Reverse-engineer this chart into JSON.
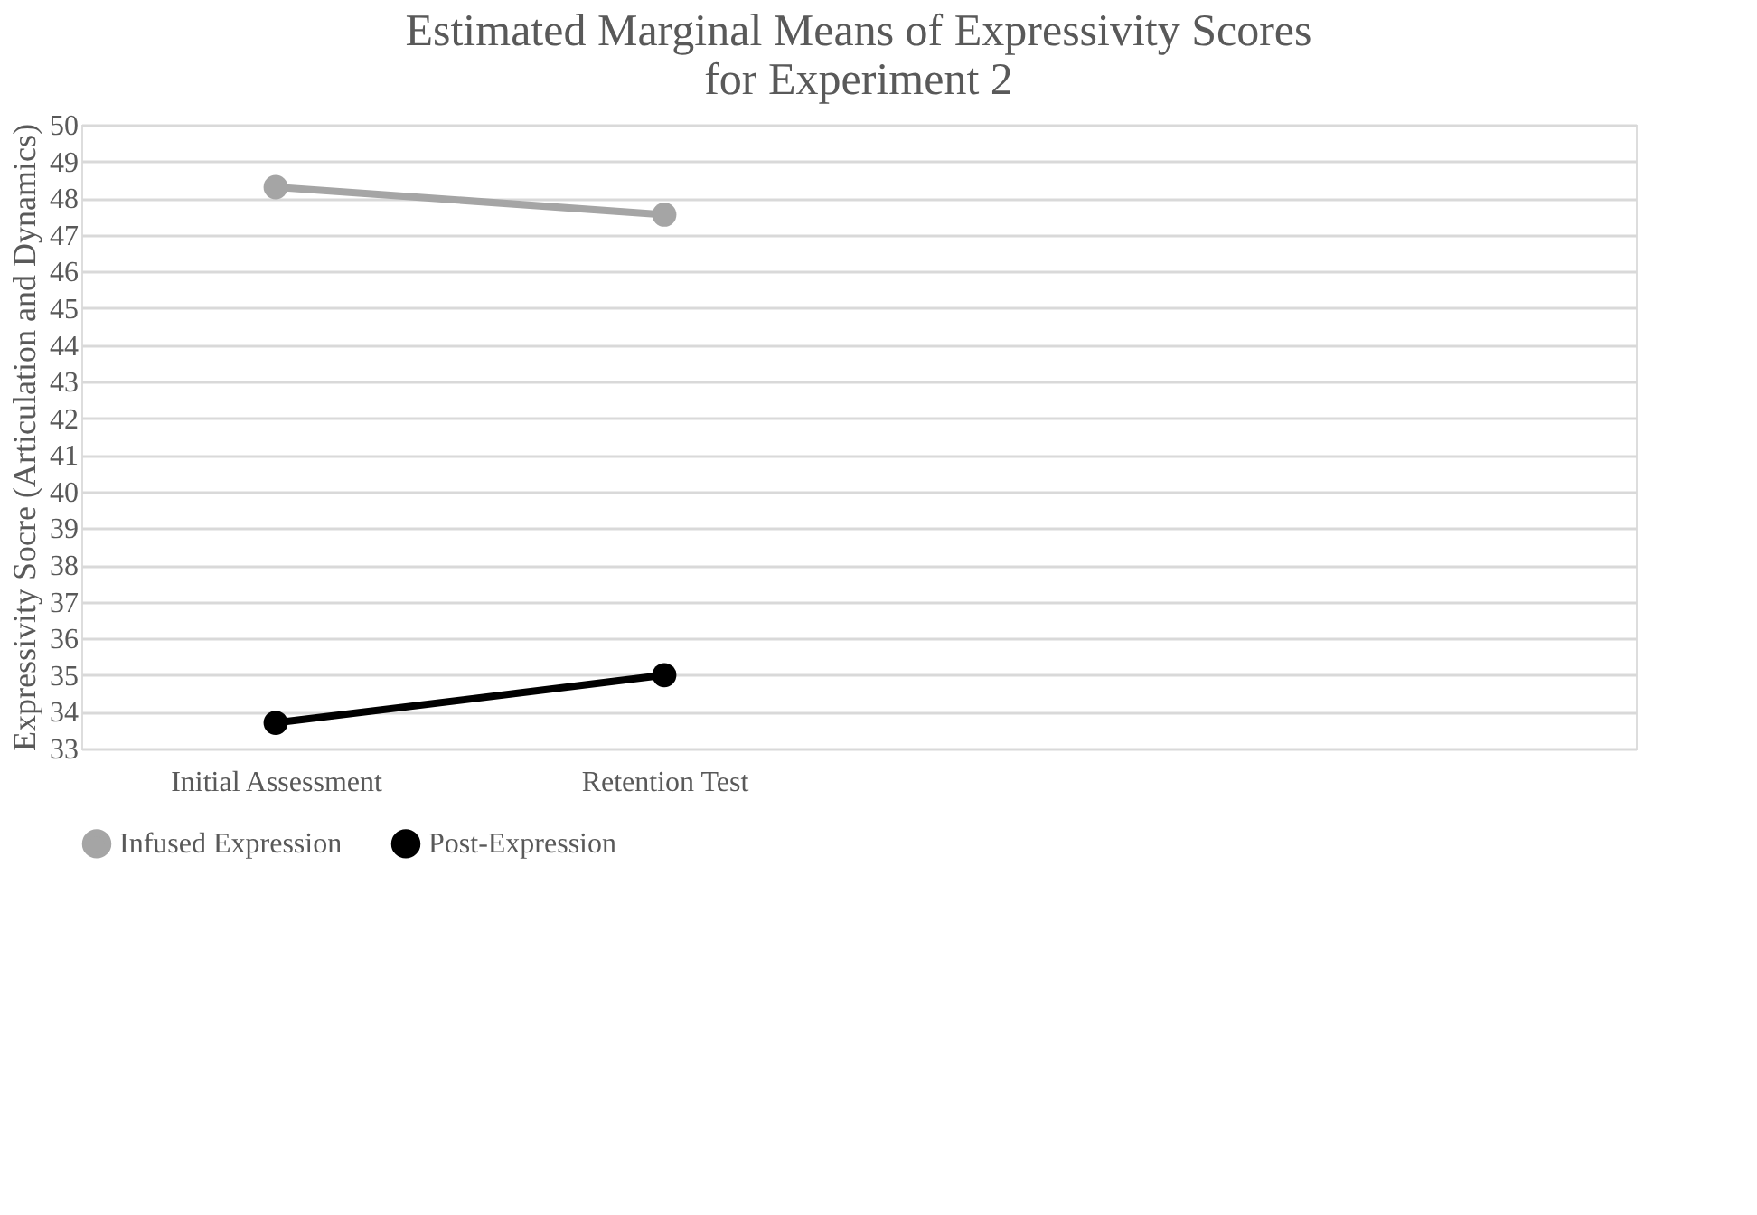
{
  "chart_data": {
    "type": "line",
    "title": "Estimated Marginal Means of Expressivity Scores\nfor Experiment 2",
    "ylabel": "Expressivity Socre (Articulation and Dynamics)",
    "categories": [
      "Initial Assessment",
      "Retention Test",
      null,
      null
    ],
    "series": [
      {
        "name": "Infused Expression",
        "color": "#a5a5a5",
        "values": [
          48.3,
          47.55,
          null,
          null
        ]
      },
      {
        "name": "Post-Expression",
        "color": "#000000",
        "values": [
          33.7,
          35.0,
          null,
          null
        ]
      }
    ],
    "ylim": [
      33,
      50
    ],
    "yticks": [
      33,
      34,
      35,
      36,
      37,
      38,
      39,
      40,
      41,
      42,
      43,
      44,
      45,
      46,
      47,
      48,
      49,
      50
    ],
    "grid": "y",
    "legend": "bottom",
    "marker": "circle",
    "line_style": "solid"
  }
}
